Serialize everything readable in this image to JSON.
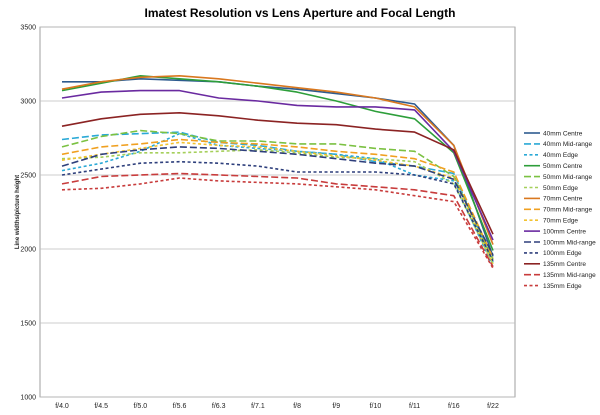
{
  "chart_data": {
    "type": "line",
    "title": "Imatest Resolution vs Lens Aperture and Focal Length",
    "xlabel": "",
    "ylabel": "Line widths/picture height",
    "categories": [
      "f/4.0",
      "f/4.5",
      "f/5.0",
      "f/5.6",
      "f/6.3",
      "f/7.1",
      "f/8",
      "f/9",
      "f/10",
      "f/11",
      "f/16",
      "f/22"
    ],
    "ylim": [
      1000,
      3500
    ],
    "yticks": [
      "1000",
      "1500",
      "2000",
      "2500",
      "3000",
      "3500"
    ],
    "grid": "horizontal",
    "legend": "right",
    "series": [
      {
        "name": "40mm Centre",
        "color": "#2e5b8f",
        "dash": "solid",
        "values": [
          3130,
          3130,
          3150,
          3140,
          3130,
          3100,
          3080,
          3050,
          3020,
          2980,
          2700,
          1950
        ]
      },
      {
        "name": "40mm Mid-range",
        "color": "#2aa9d6",
        "dash": "long",
        "values": [
          2740,
          2770,
          2780,
          2790,
          2720,
          2700,
          2660,
          2640,
          2590,
          2560,
          2510,
          1910
        ]
      },
      {
        "name": "40mm Edge",
        "color": "#2aa9d6",
        "dash": "short",
        "values": [
          2530,
          2580,
          2660,
          2780,
          2700,
          2680,
          2660,
          2640,
          2610,
          2500,
          2460,
          1880
        ]
      },
      {
        "name": "50mm Centre",
        "color": "#2d9e3a",
        "dash": "solid",
        "values": [
          3070,
          3120,
          3170,
          3150,
          3130,
          3100,
          3060,
          3000,
          2930,
          2880,
          2650,
          1990
        ]
      },
      {
        "name": "50mm Mid-range",
        "color": "#7bc142",
        "dash": "long",
        "values": [
          2690,
          2760,
          2800,
          2780,
          2730,
          2730,
          2710,
          2710,
          2680,
          2660,
          2490,
          1930
        ]
      },
      {
        "name": "50mm Edge",
        "color": "#a5cf5a",
        "dash": "short",
        "values": [
          2610,
          2620,
          2650,
          2650,
          2660,
          2670,
          2650,
          2620,
          2610,
          2590,
          2440,
          1900
        ]
      },
      {
        "name": "70mm Centre",
        "color": "#d9781f",
        "dash": "solid",
        "values": [
          3080,
          3130,
          3160,
          3170,
          3150,
          3120,
          3090,
          3060,
          3020,
          2960,
          2700,
          2030
        ]
      },
      {
        "name": "70mm Mid-range",
        "color": "#f0a020",
        "dash": "long",
        "values": [
          2640,
          2690,
          2710,
          2740,
          2720,
          2710,
          2690,
          2660,
          2640,
          2610,
          2520,
          1940
        ]
      },
      {
        "name": "70mm Edge",
        "color": "#f2c230",
        "dash": "short",
        "values": [
          2600,
          2640,
          2680,
          2720,
          2700,
          2690,
          2660,
          2630,
          2600,
          2560,
          2480,
          1900
        ]
      },
      {
        "name": "100mm Centre",
        "color": "#6a2aa0",
        "dash": "solid",
        "values": [
          3020,
          3060,
          3070,
          3070,
          3020,
          3000,
          2970,
          2960,
          2960,
          2940,
          2660,
          2060
        ]
      },
      {
        "name": "100mm Mid-range",
        "color": "#2e3f7c",
        "dash": "long",
        "values": [
          2560,
          2640,
          2670,
          2690,
          2680,
          2660,
          2640,
          2610,
          2580,
          2560,
          2470,
          1960
        ]
      },
      {
        "name": "100mm Edge",
        "color": "#2e3f7c",
        "dash": "short",
        "values": [
          2500,
          2540,
          2580,
          2590,
          2580,
          2560,
          2520,
          2520,
          2520,
          2500,
          2440,
          1920
        ]
      },
      {
        "name": "135mm Centre",
        "color": "#8b2323",
        "dash": "solid",
        "values": [
          2830,
          2880,
          2910,
          2920,
          2900,
          2870,
          2850,
          2840,
          2810,
          2790,
          2670,
          2100
        ]
      },
      {
        "name": "135mm Mid-range",
        "color": "#c83c3c",
        "dash": "long",
        "values": [
          2440,
          2490,
          2500,
          2510,
          2500,
          2490,
          2480,
          2440,
          2420,
          2400,
          2360,
          1880
        ]
      },
      {
        "name": "135mm Edge",
        "color": "#c83c3c",
        "dash": "short",
        "values": [
          2400,
          2410,
          2440,
          2480,
          2460,
          2450,
          2440,
          2420,
          2400,
          2360,
          2320,
          1870
        ]
      }
    ]
  }
}
